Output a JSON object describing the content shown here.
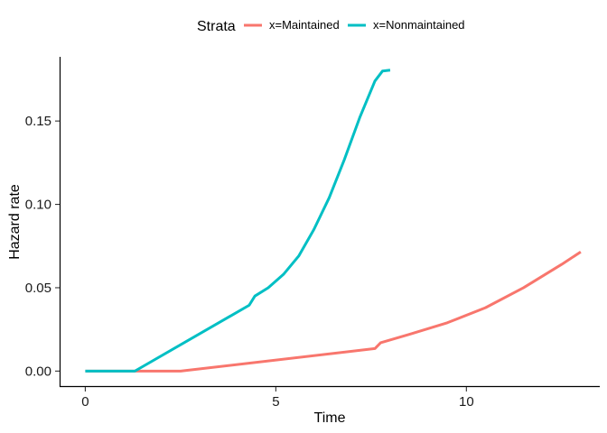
{
  "chart_data": {
    "type": "line",
    "xlabel": "Time",
    "ylabel": "Hazard rate",
    "xlim": [
      -0.65,
      13.5
    ],
    "ylim": [
      -0.009,
      0.1885
    ],
    "x_ticks": [
      0,
      5,
      10
    ],
    "x_tick_labels": [
      "0",
      "5",
      "10"
    ],
    "y_ticks": [
      0,
      0.05,
      0.1,
      0.15
    ],
    "y_tick_labels": [
      "0.00",
      "0.05",
      "0.10",
      "0.15"
    ],
    "grid": false,
    "legend": {
      "title": "Strata",
      "placement": "top"
    },
    "series": [
      {
        "name": "x=Maintained",
        "color": "#F8766D",
        "x": [
          0,
          2.5,
          7.6,
          7.75,
          8.5,
          9.5,
          10.5,
          11.5,
          12.5,
          13.0
        ],
        "y": [
          0,
          0,
          0.0135,
          0.017,
          0.022,
          0.029,
          0.038,
          0.05,
          0.064,
          0.0715
        ]
      },
      {
        "name": "x=Nonmaintained",
        "color": "#00BFC4",
        "x": [
          0,
          1.3,
          4.3,
          4.45,
          4.8,
          5.2,
          5.6,
          6.0,
          6.4,
          6.8,
          7.2,
          7.6,
          7.8,
          8.0
        ],
        "y": [
          0,
          0,
          0.0395,
          0.045,
          0.05,
          0.058,
          0.069,
          0.085,
          0.104,
          0.127,
          0.152,
          0.174,
          0.18,
          0.1805
        ]
      }
    ]
  }
}
